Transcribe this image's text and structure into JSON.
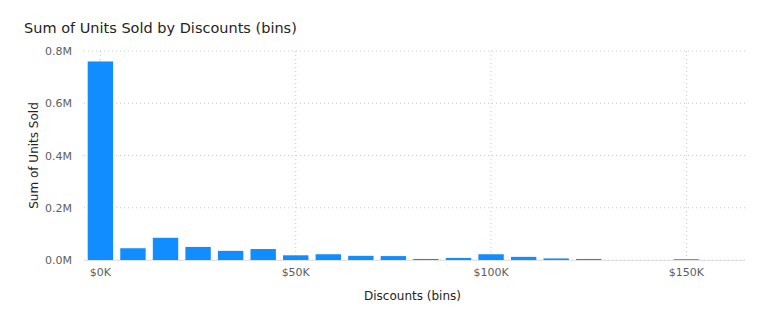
{
  "chart_data": {
    "type": "bar",
    "title": "Sum of Units Sold by Discounts (bins)",
    "x_label": "Discounts (bins)",
    "y_label": "Sum of Units Sold",
    "x": [
      0,
      8333,
      16667,
      25000,
      33333,
      41667,
      50000,
      58333,
      66667,
      75000,
      83333,
      91667,
      100000,
      108333,
      116667,
      125000,
      150000
    ],
    "values": [
      760000,
      45000,
      85000,
      50000,
      35000,
      42000,
      18000,
      22000,
      16000,
      15000,
      4000,
      8000,
      22000,
      12000,
      6000,
      4000,
      3000
    ],
    "color": "#118DFF",
    "xlim": [
      -4200,
      165000
    ],
    "xticks": [
      {
        "value": 0,
        "label": "$0K"
      },
      {
        "value": 50000,
        "label": "$50K"
      },
      {
        "value": 100000,
        "label": "$100K"
      },
      {
        "value": 150000,
        "label": "$150K"
      }
    ],
    "ylim": [
      0,
      800000
    ],
    "yticks": [
      {
        "value": 0,
        "label": "0.0M"
      },
      {
        "value": 200000,
        "label": "0.2M"
      },
      {
        "value": 400000,
        "label": "0.4M"
      },
      {
        "value": 600000,
        "label": "0.6M"
      },
      {
        "value": 800000,
        "label": "0.8M"
      }
    ],
    "grid": true
  }
}
